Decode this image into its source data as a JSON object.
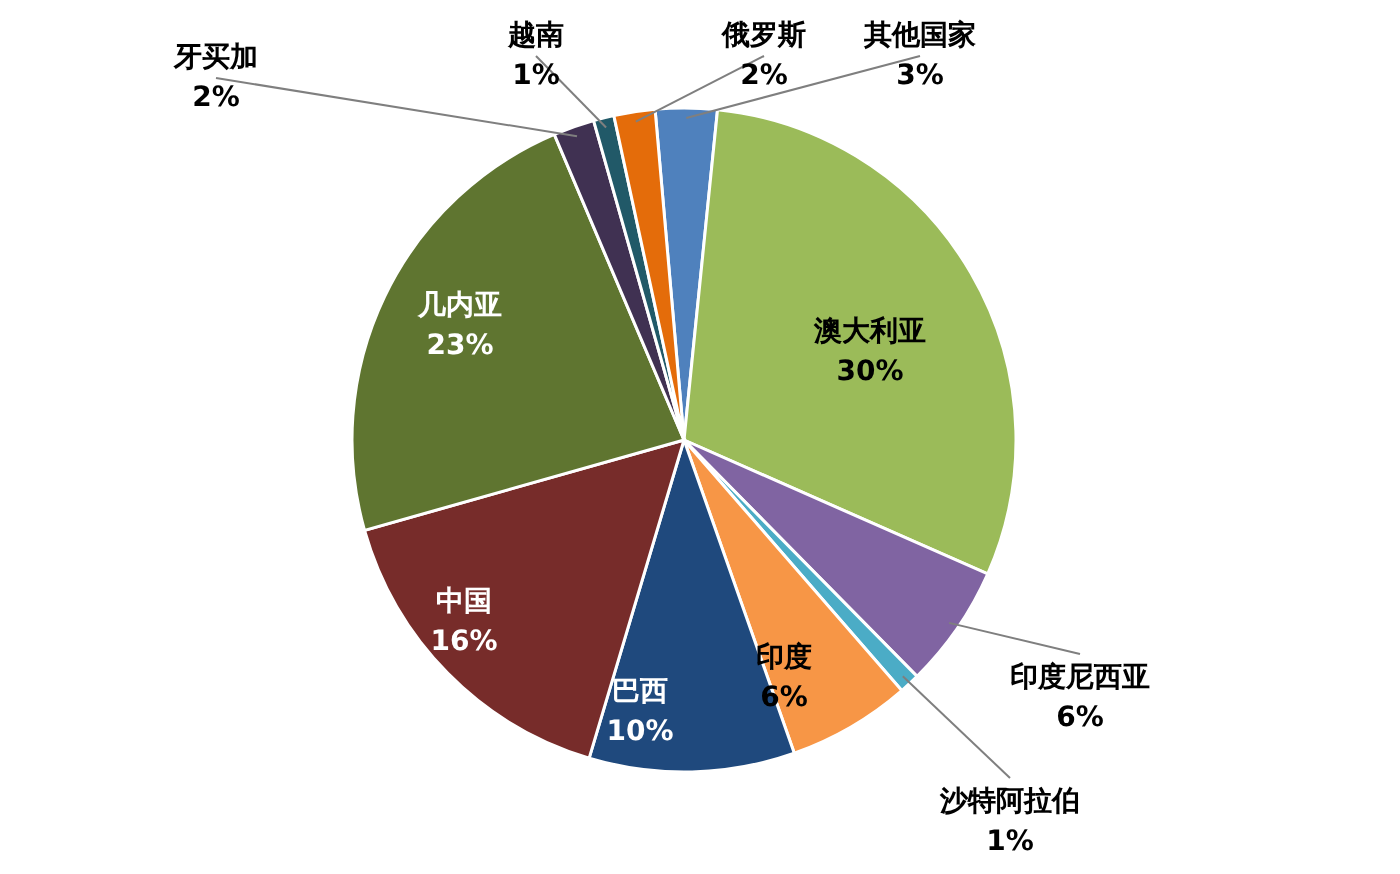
{
  "chart_data": {
    "type": "pie",
    "categories": [
      "其他国家",
      "澳大利亚",
      "印度尼西亚",
      "沙特阿拉伯",
      "印度",
      "巴西",
      "中国",
      "几内亚",
      "牙买加",
      "越南",
      "俄罗斯"
    ],
    "values": [
      3,
      30,
      6,
      1,
      6,
      10,
      16,
      23,
      2,
      1,
      2
    ],
    "value_labels": [
      "3%",
      "30%",
      "6%",
      "1%",
      "6%",
      "10%",
      "16%",
      "23%",
      "2%",
      "1%",
      "2%"
    ],
    "colors": [
      "#4f81bd",
      "#9bbb59",
      "#8064a2",
      "#4bacc6",
      "#f79646",
      "#1f497d",
      "#772c2a",
      "#5f7530",
      "#403152",
      "#215968",
      "#e46c0a"
    ],
    "legend": false
  }
}
